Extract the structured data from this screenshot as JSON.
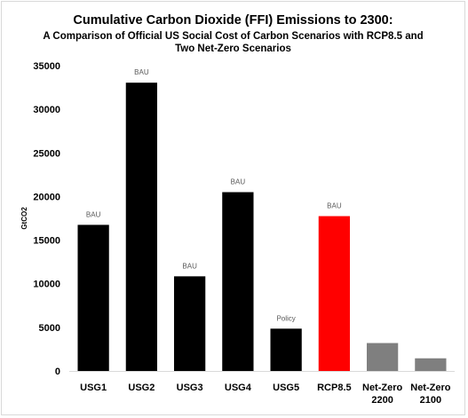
{
  "chart_data": {
    "type": "bar",
    "title": "Cumulative Carbon Dioxide (FFI) Emissions to 2300:",
    "subtitle_line1": "A Comparison of Official US Social Cost of Carbon Scenarios with RCP8.5 and",
    "subtitle_line2": "Two Net-Zero Scenarios",
    "ylabel": "GtCO2",
    "xlabel": "",
    "ylim": [
      0,
      35000
    ],
    "yticks": [
      0,
      5000,
      10000,
      15000,
      20000,
      25000,
      30000,
      35000
    ],
    "grid": false,
    "legend": "none",
    "categories": [
      [
        "USG1"
      ],
      [
        "USG2"
      ],
      [
        "USG3"
      ],
      [
        "USG4"
      ],
      [
        "USG5"
      ],
      [
        "RCP8.5"
      ],
      [
        "Net-Zero",
        "2200"
      ],
      [
        "Net-Zero",
        "2100"
      ]
    ],
    "values": [
      16750,
      33050,
      10850,
      20500,
      4850,
      17750,
      3200,
      1450
    ],
    "bar_labels": [
      "BAU",
      "BAU",
      "BAU",
      "BAU",
      "Policy",
      "BAU",
      "",
      ""
    ],
    "colors": [
      "#000000",
      "#000000",
      "#000000",
      "#000000",
      "#000000",
      "#ff0000",
      "#7f7f7f",
      "#7f7f7f"
    ]
  }
}
